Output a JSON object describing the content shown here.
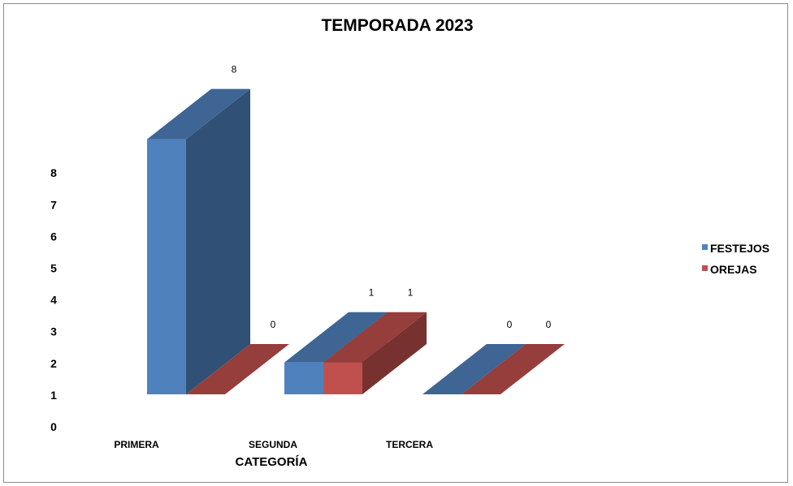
{
  "chart_data": {
    "type": "bar",
    "style": "3d-clustered-columns",
    "title": "TEMPORADA 2023",
    "xlabel": "CATEGORÍA",
    "ylabel": "",
    "categories": [
      "PRIMERA",
      "SEGUNDA",
      "TERCERA"
    ],
    "series": [
      {
        "name": "FESTEJOS",
        "values": [
          8,
          1,
          0
        ],
        "color": "#4f81bd"
      },
      {
        "name": "OREJAS",
        "values": [
          0,
          1,
          0
        ],
        "color": "#c0504d"
      }
    ],
    "y_ticks": [
      "0",
      "1",
      "2",
      "3",
      "4",
      "5",
      "6",
      "7",
      "8"
    ],
    "grid": false,
    "legend_position": "right"
  }
}
